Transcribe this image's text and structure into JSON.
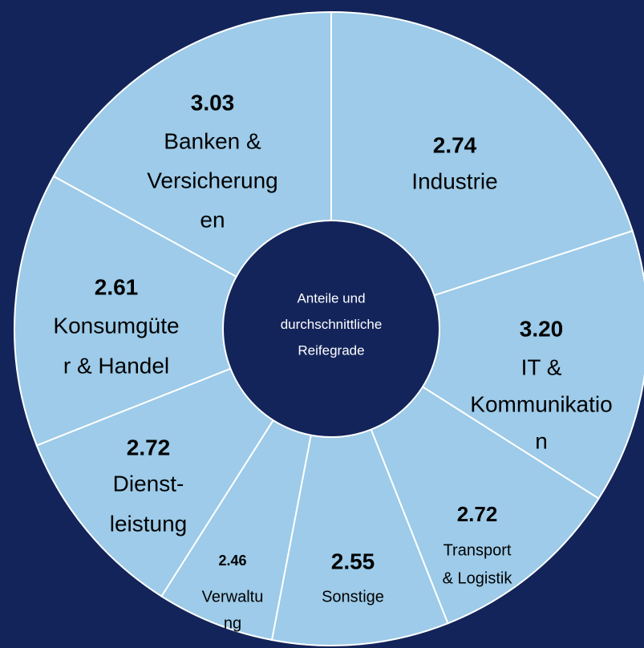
{
  "chart_data": {
    "type": "donut",
    "center_text": [
      "Anteile und",
      "durchschnittliche",
      "Reifegrade"
    ],
    "categories": [
      [
        "Industrie"
      ],
      [
        "IT &",
        "Kommunikatio",
        "n"
      ],
      [
        "Transport",
        "& Logistik"
      ],
      [
        "Sonstige"
      ],
      [
        "Verwaltu",
        "ng"
      ],
      [
        "Dienst-",
        "leistung"
      ],
      [
        "Konsumgüte",
        "r & Handel"
      ],
      [
        "Banken &",
        "Versicherung",
        "en"
      ]
    ],
    "values": [
      20,
      14,
      10,
      9,
      6,
      10,
      14,
      17
    ],
    "scores": [
      {
        "value": 2.74,
        "label": "2.74"
      },
      {
        "value": 3.2,
        "label": "3.20"
      },
      {
        "value": 2.72,
        "label": "2.72"
      },
      {
        "value": 2.55,
        "label": "2.55"
      },
      {
        "value": 2.46,
        "label": "2.46"
      },
      {
        "value": 2.72,
        "label": "2.72"
      },
      {
        "value": 2.61,
        "label": "2.61"
      },
      {
        "value": 3.03,
        "label": "3.03"
      }
    ],
    "color": "#9dcbe9",
    "background": "#13245a"
  }
}
